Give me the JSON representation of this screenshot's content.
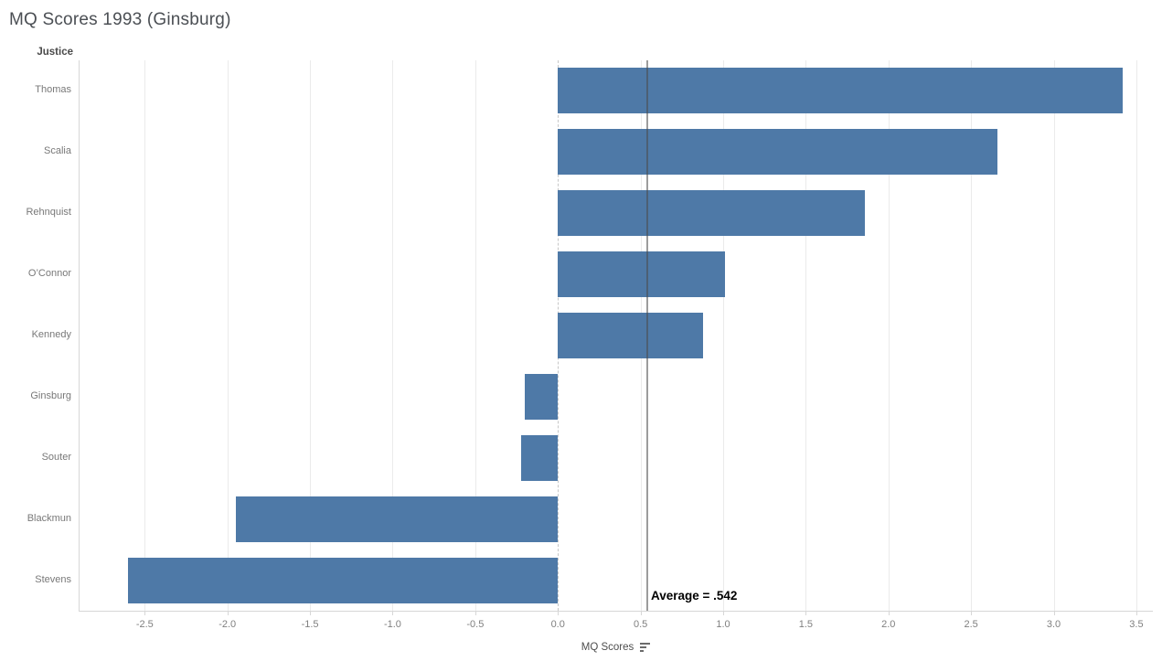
{
  "title": "MQ Scores 1993 (Ginsburg)",
  "row_header": "Justice",
  "chart_data": {
    "type": "bar",
    "orientation": "horizontal",
    "title": "MQ Scores 1993 (Ginsburg)",
    "categories": [
      "Thomas",
      "Scalia",
      "Rehnquist",
      "O’Connor",
      "Kennedy",
      "Ginsburg",
      "Souter",
      "Blackmun",
      "Stevens"
    ],
    "values": [
      3.42,
      2.66,
      1.86,
      1.01,
      0.88,
      -0.2,
      -0.22,
      -1.95,
      -2.6
    ],
    "xlabel": "MQ Scores",
    "ylabel": "Justice",
    "xlim": [
      -2.9,
      3.6
    ],
    "xticks": [
      -2.5,
      -2.0,
      -1.5,
      -1.0,
      -0.5,
      0.0,
      0.5,
      1.0,
      1.5,
      2.0,
      2.5,
      3.0,
      3.5
    ],
    "tick_format_decimals": 1,
    "grid": true,
    "legend": false,
    "bar_color": "#4e79a7",
    "reference_line": {
      "value": 0.542,
      "label": "Average = .542"
    }
  },
  "icons": {
    "sort_icon": "sort-descending-icon"
  },
  "colors": {
    "bar": "#4e79a7",
    "gridline": "#ebebeb",
    "zero_line": "#c7c7c7",
    "axis_line": "#d7d7d7",
    "reference_line": "#4a4a4a",
    "title_text": "#4b4f54",
    "label_text": "#787878",
    "annotation_text": "#000000"
  }
}
